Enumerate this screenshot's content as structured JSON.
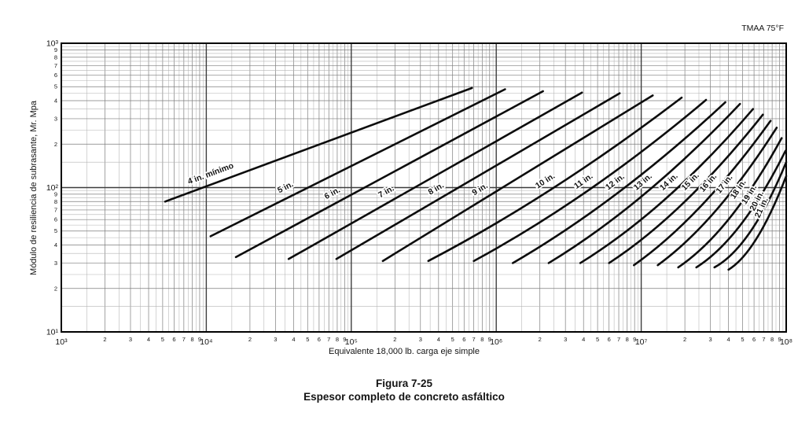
{
  "chart_data": {
    "type": "line",
    "title": "Figura 7-25",
    "subtitle": "Espesor completo de concreto asfáltico",
    "corner_note": "TMAA 75°F",
    "xlabel": "Equivalente 18,000 lb. carga eje simple",
    "ylabel": "Módulo de resiliencia de subrasante, Mr. Mpa",
    "x_scale": "log",
    "y_scale": "log",
    "xlim": [
      1000,
      100000000
    ],
    "ylim": [
      10,
      1000
    ],
    "x_decade_labels": [
      "10³",
      "10⁴",
      "10⁵",
      "10⁶",
      "10⁷",
      "10⁸"
    ],
    "y_decade_labels": [
      "10¹",
      "10²",
      "10³"
    ],
    "minor_x_labels": [
      "2",
      "3",
      "4",
      "5",
      "6",
      "7",
      "8",
      "9"
    ],
    "minor_y_labels": [
      "2",
      "3",
      "4",
      "5",
      "6",
      "7",
      "8",
      "9"
    ],
    "grid": true,
    "legend_position": "on-curve-labels",
    "colors": {
      "ink": "#141414",
      "curve": "#0d0d0d",
      "grid_decade": "#3d3d3d",
      "grid_minor": "#7d7d7d",
      "grid_fine": "#b3b3b3",
      "border": "#000000"
    },
    "series": [
      {
        "name": "4 in. mínimo",
        "label_t": 0.16,
        "points": [
          [
            5200,
            80
          ],
          [
            680000,
            490
          ]
        ]
      },
      {
        "name": "5 in.",
        "label_t": 0.27,
        "points": [
          [
            10700,
            46
          ],
          [
            1150000,
            480
          ]
        ]
      },
      {
        "name": "6 in.",
        "label_t": 0.33,
        "points": [
          [
            16000,
            33
          ],
          [
            2100000,
            465
          ]
        ]
      },
      {
        "name": "7 in.",
        "label_t": 0.35,
        "points": [
          [
            37000,
            32
          ],
          [
            3900000,
            455
          ]
        ]
      },
      {
        "name": "8 in.",
        "label_t": 0.37,
        "points": [
          [
            79000,
            32
          ],
          [
            7100000,
            450
          ]
        ]
      },
      {
        "name": "9 in.",
        "label_t": 0.38,
        "points": [
          [
            165000,
            31
          ],
          [
            12000000,
            435
          ]
        ]
      },
      {
        "name": "10 in.",
        "label_t": 0.47,
        "points": [
          [
            340000,
            31
          ],
          [
            2500000,
            100
          ],
          [
            19000000,
            420
          ]
        ]
      },
      {
        "name": "11 in.",
        "label_t": 0.48,
        "points": [
          [
            700000,
            31
          ],
          [
            4400000,
            97
          ],
          [
            28000000,
            405
          ]
        ]
      },
      {
        "name": "12 in.",
        "label_t": 0.49,
        "points": [
          [
            1300000,
            30
          ],
          [
            7000000,
            93
          ],
          [
            38000000,
            390
          ]
        ]
      },
      {
        "name": "13 in.",
        "label_t": 0.5,
        "points": [
          [
            2300000,
            30
          ],
          [
            10500000,
            90
          ],
          [
            48000000,
            380
          ]
        ]
      },
      {
        "name": "14 in.",
        "label_t": 0.52,
        "points": [
          [
            3800000,
            30
          ],
          [
            15000000,
            85
          ],
          [
            59000000,
            350
          ]
        ]
      },
      {
        "name": "15 in.",
        "label_t": 0.54,
        "points": [
          [
            6000000,
            30
          ],
          [
            20000000,
            80
          ],
          [
            69000000,
            320
          ]
        ]
      },
      {
        "name": "16 in.",
        "label_t": 0.56,
        "points": [
          [
            8900000,
            29
          ],
          [
            26000000,
            75
          ],
          [
            78000000,
            290
          ]
        ]
      },
      {
        "name": "17 in.",
        "label_t": 0.58,
        "points": [
          [
            13000000,
            29
          ],
          [
            33000000,
            70
          ],
          [
            86000000,
            260
          ]
        ]
      },
      {
        "name": "18 in.",
        "label_t": 0.6,
        "points": [
          [
            18000000,
            28
          ],
          [
            41000000,
            62
          ],
          [
            93000000,
            220
          ]
        ]
      },
      {
        "name": "19 in.",
        "label_t": 0.62,
        "points": [
          [
            24000000,
            28
          ],
          [
            49000000,
            56
          ],
          [
            99000000,
            180
          ]
        ]
      },
      {
        "name": "20 in.",
        "label_t": 0.63,
        "points": [
          [
            32000000,
            28
          ],
          [
            57000000,
            50
          ],
          [
            100000000,
            150
          ]
        ]
      },
      {
        "name": "21 in.",
        "label_t": 0.65,
        "points": [
          [
            40000000,
            27
          ],
          [
            63000000,
            45
          ],
          [
            100000000,
            120
          ]
        ]
      }
    ]
  }
}
